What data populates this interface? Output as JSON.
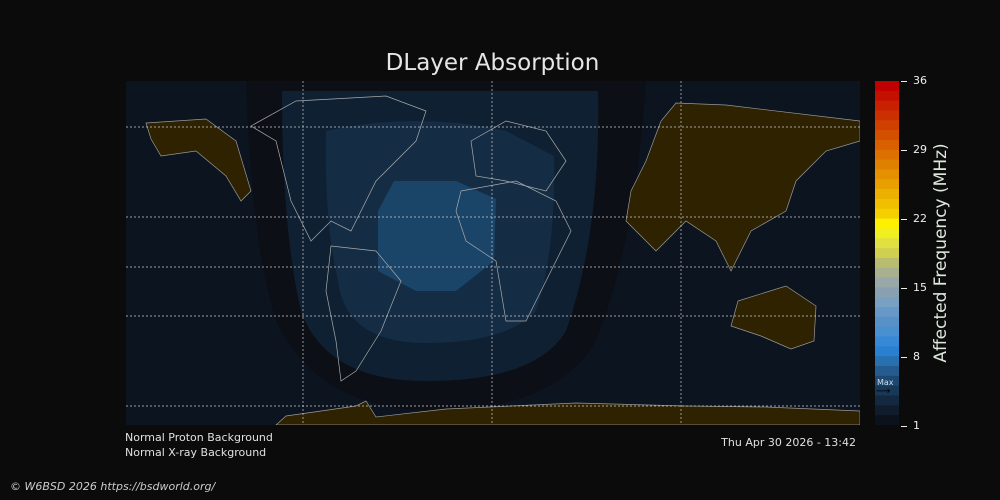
{
  "title": "DLayer Absorption",
  "colorbar": {
    "label": "Affected Frequency (MHz)",
    "ticks": [
      "36",
      "29",
      "22",
      "15",
      "8",
      "1"
    ],
    "range": [
      1,
      36
    ],
    "max_marker_label": "Max",
    "max_marker_value": 4.5,
    "colors": [
      "#c00000",
      "#c41000",
      "#c82000",
      "#cc3000",
      "#d04000",
      "#d45000",
      "#d86000",
      "#dc7000",
      "#e08000",
      "#e49000",
      "#e8a000",
      "#ecb000",
      "#f0c000",
      "#f4d000",
      "#fff000",
      "#f0f020",
      "#e0e040",
      "#d0d050",
      "#b8bc70",
      "#a8b090",
      "#98a8a8",
      "#88a0b0",
      "#78a0c0",
      "#6898c8",
      "#5890c8",
      "#4890d0",
      "#3888d8",
      "#2a80d0",
      "#2870b0",
      "#245c90",
      "#1e4870",
      "#183858",
      "#142840",
      "#101c2c",
      "#0c121c"
    ]
  },
  "map": {
    "night_land_color": "#2e2200",
    "absorption_levels": [
      "#0c0f16",
      "#0f2032",
      "#142d45",
      "#1a4468"
    ]
  },
  "footer": {
    "proton": "Normal Proton Background",
    "xray": "Normal X-ray Background",
    "timestamp": "Thu Apr 30 2026 - 13:42",
    "copyright": "© W6BSD 2026 https://bsdworld.org/"
  }
}
